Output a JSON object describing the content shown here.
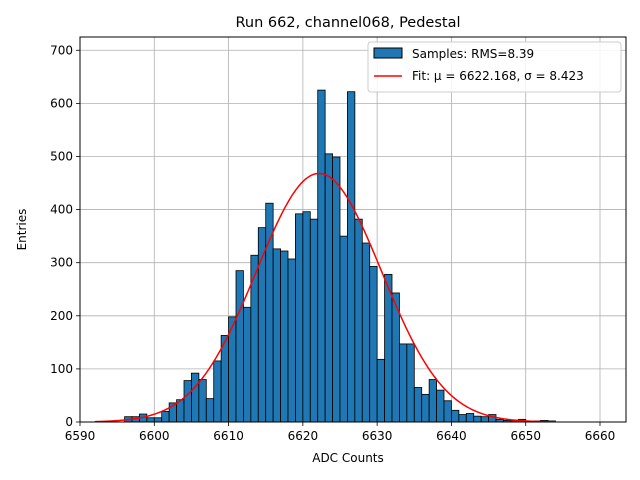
{
  "chart_data": {
    "type": "bar",
    "title": "Run 662, channel068, Pedestal",
    "xlabel": "ADC Counts",
    "ylabel": "Entries",
    "xlim": [
      6590.0,
      6663.5
    ],
    "ylim": [
      0,
      725
    ],
    "x_ticks": [
      6590,
      6600,
      6610,
      6620,
      6630,
      6640,
      6650,
      6660
    ],
    "y_ticks": [
      0,
      100,
      200,
      300,
      400,
      500,
      600,
      700
    ],
    "grid": true,
    "legend_position": "top-right",
    "bin_width": 1,
    "bins": {
      "left_edges": [
        6596,
        6597,
        6598,
        6599,
        6600,
        6601,
        6602,
        6603,
        6604,
        6605,
        6606,
        6607,
        6608,
        6609,
        6610,
        6611,
        6612,
        6613,
        6614,
        6615,
        6616,
        6617,
        6618,
        6619,
        6620,
        6621,
        6622,
        6623,
        6624,
        6625,
        6626,
        6627,
        6628,
        6629,
        6630,
        6631,
        6632,
        6633,
        6634,
        6635,
        6636,
        6637,
        6638,
        6639,
        6640,
        6641,
        6642,
        6643,
        6644,
        6645,
        6646,
        6647,
        6648,
        6649,
        6650,
        6651,
        6652,
        6653
      ],
      "counts": [
        10,
        10,
        15,
        8,
        8,
        20,
        36,
        42,
        78,
        92,
        80,
        44,
        115,
        163,
        198,
        285,
        216,
        314,
        366,
        412,
        326,
        322,
        307,
        392,
        396,
        382,
        625,
        505,
        499,
        350,
        622,
        382,
        337,
        293,
        118,
        278,
        243,
        147,
        147,
        65,
        52,
        80,
        60,
        40,
        22,
        14,
        16,
        11,
        10,
        14,
        5,
        3,
        3,
        5,
        2,
        2,
        3,
        2
      ]
    },
    "series": [
      {
        "name": "Samples: RMS=8.39",
        "kind": "histogram",
        "color": "#1f77b4"
      },
      {
        "name": "Fit: μ = 6622.168, σ = 8.423",
        "kind": "line",
        "color": "#ff0000",
        "mu": 6622.168,
        "sigma": 8.423,
        "amplitude": 468,
        "x_range": [
          6592,
          6654
        ]
      }
    ]
  }
}
